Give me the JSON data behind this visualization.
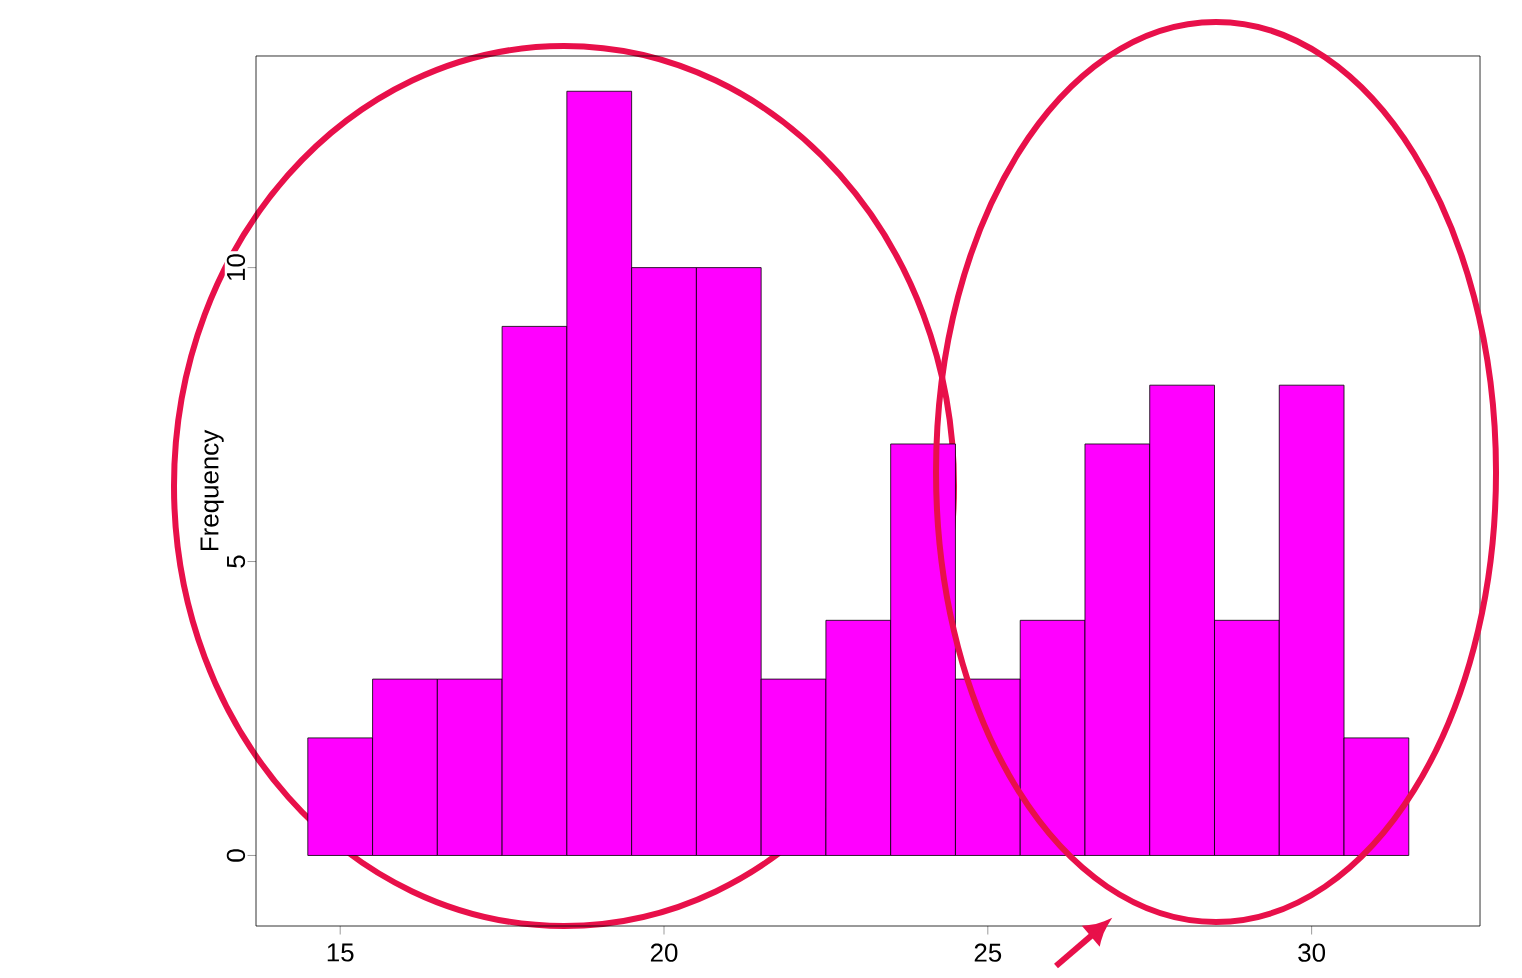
{
  "chart_data": {
    "type": "histogram",
    "ylabel": "Frequency",
    "bins": [
      14.5,
      15.5,
      16.5,
      17.5,
      18.5,
      19.5,
      20.5,
      21.5,
      22.5,
      23.5,
      24.5,
      25.5,
      26.5,
      27.5,
      28.5,
      29.5,
      30.5,
      31.5
    ],
    "values": [
      2,
      3,
      3,
      9,
      13,
      10,
      10,
      3,
      4,
      7,
      3,
      4,
      7,
      8,
      4,
      8,
      2
    ],
    "color": "#ff00ff",
    "xlim": [
      13.7,
      32.6
    ],
    "ylim": [
      -1.2,
      13.6
    ],
    "xticks": [
      15,
      20,
      25,
      30
    ],
    "yticks": [
      0,
      5,
      10
    ],
    "grid": false
  }
}
